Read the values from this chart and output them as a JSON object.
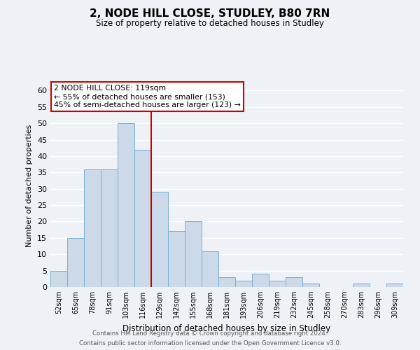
{
  "title": "2, NODE HILL CLOSE, STUDLEY, B80 7RN",
  "subtitle": "Size of property relative to detached houses in Studley",
  "xlabel": "Distribution of detached houses by size in Studley",
  "ylabel": "Number of detached properties",
  "bar_labels": [
    "52sqm",
    "65sqm",
    "78sqm",
    "91sqm",
    "103sqm",
    "116sqm",
    "129sqm",
    "142sqm",
    "155sqm",
    "168sqm",
    "181sqm",
    "193sqm",
    "206sqm",
    "219sqm",
    "232sqm",
    "245sqm",
    "258sqm",
    "270sqm",
    "283sqm",
    "296sqm",
    "309sqm"
  ],
  "bar_values": [
    5,
    15,
    36,
    36,
    50,
    42,
    29,
    17,
    20,
    11,
    3,
    2,
    4,
    2,
    3,
    1,
    0,
    0,
    1,
    0,
    1
  ],
  "bar_color": "#ccd9e8",
  "bar_edge_color": "#7aaed4",
  "vline_x": 5.5,
  "vline_color": "#cc0000",
  "ylim": [
    0,
    62
  ],
  "yticks": [
    0,
    5,
    10,
    15,
    20,
    25,
    30,
    35,
    40,
    45,
    50,
    55,
    60
  ],
  "annotation_title": "2 NODE HILL CLOSE: 119sqm",
  "annotation_line1": "← 55% of detached houses are smaller (153)",
  "annotation_line2": "45% of semi-detached houses are larger (123) →",
  "annotation_box_color": "#ffffff",
  "annotation_box_edge": "#cc0000",
  "footer_line1": "Contains HM Land Registry data © Crown copyright and database right 2024.",
  "footer_line2": "Contains public sector information licensed under the Open Government Licence v3.0.",
  "bg_color": "#eef2f7",
  "plot_bg_color": "#eef2f7",
  "grid_color": "#ffffff"
}
